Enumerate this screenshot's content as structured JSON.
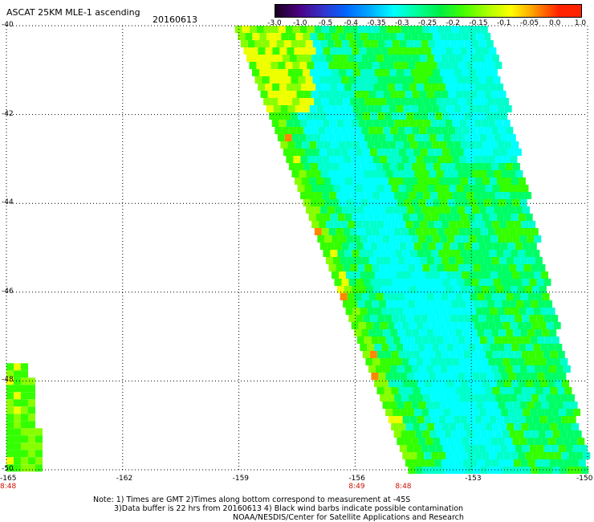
{
  "title": "ASCAT 25KM MLE-1 ascending",
  "date": "20160613",
  "colorbar": {
    "labels": [
      "-3.0",
      "-1.0",
      "-0.5",
      "-0.4",
      "-0.35",
      "-0.3",
      "-0.25",
      "-0.2",
      "-0.15",
      "-0.1",
      "-0.05",
      "0.0",
      "1.0"
    ],
    "colors": [
      "#1a0020",
      "#4b0082",
      "#3333cc",
      "#0066ff",
      "#00aaff",
      "#00ffff",
      "#00ff99",
      "#00ee44",
      "#44ff00",
      "#aaff00",
      "#ffff00",
      "#ff9900",
      "#ff2200"
    ]
  },
  "axes": {
    "lat_ticks": [
      "-40",
      "-42",
      "-44",
      "-46",
      "-48",
      "-50"
    ],
    "lon_ticks": [
      "-165",
      "-162",
      "-159",
      "-156",
      "-153",
      "-150"
    ],
    "lat_range": [
      -50,
      -40
    ],
    "lon_range": [
      -165,
      -150
    ],
    "grid": "dotted"
  },
  "time_labels": [
    {
      "text": "8:48",
      "lon": -165
    },
    {
      "text": "8:49",
      "lon": -156
    },
    {
      "text": "8:48",
      "lon": -154.8
    }
  ],
  "notes": [
    "Note: 1) Times are GMT 2)Times along bottom correspond to measurement at -45S",
    "3)Data buffer is 22 hrs from 20160613 4) Black wind barbs indicate possible contamination",
    "NOAA/NESDIS/Center for Satellite Applications and Research"
  ],
  "swaths": {
    "main": {
      "lat_top": -40,
      "lat_bottom": -50,
      "west_lon_top": -159.1,
      "west_lon_bottom": -154.6,
      "east_lon_top": -152.6,
      "east_lon_bottom": -150
    },
    "left_strip": {
      "lon_west": -165,
      "lon_east": -164.3,
      "lat_top": -47.6,
      "lat_bottom": -50
    }
  },
  "palette": {
    "cyan": "#00ffff",
    "aqua": "#00ffcc",
    "green": "#00ff66",
    "brightgreen": "#33ff00",
    "lime": "#88ff00",
    "yellow": "#eeff00",
    "orange": "#ff8800"
  }
}
